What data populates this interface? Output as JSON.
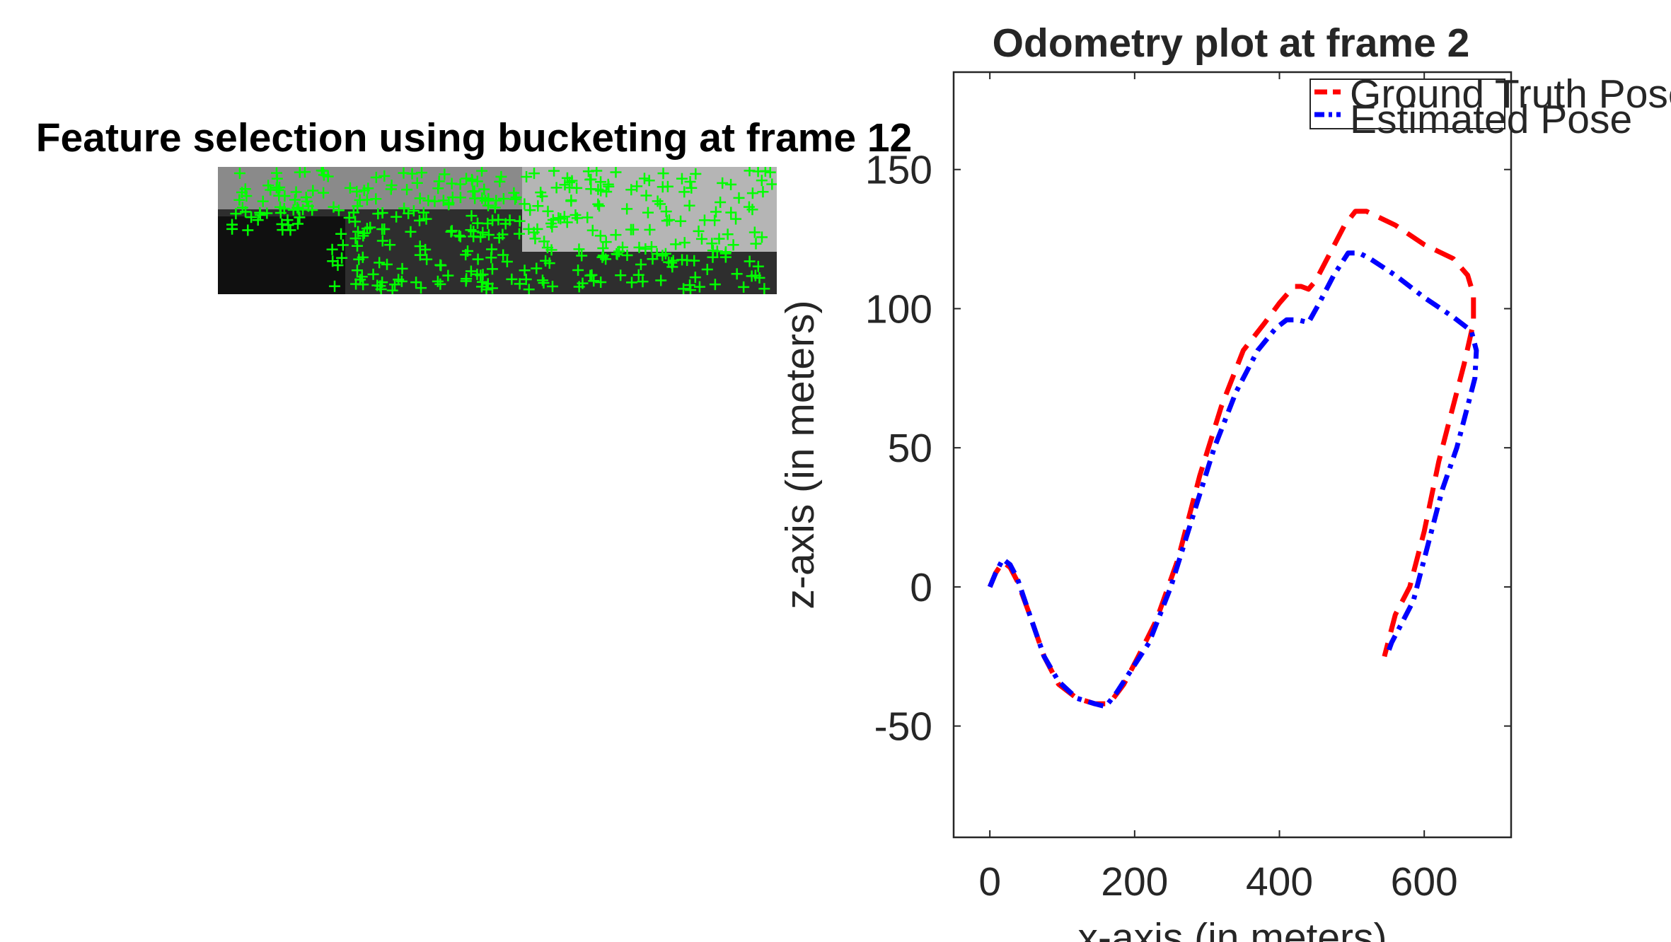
{
  "figure": {
    "left_panel": {
      "title": "Feature selection using bucketing at frame 12",
      "marker_color": "#00ff00",
      "marker_symbol": "+"
    }
  },
  "chart_data": {
    "type": "line",
    "title": "Odometry plot at frame 2",
    "xlabel": "x-axis (in meters)",
    "ylabel": "z-axis (in meters)",
    "xlim": [
      -50,
      720
    ],
    "ylim": [
      -90,
      185
    ],
    "xticks": [
      0,
      200,
      400,
      600
    ],
    "yticks": [
      -50,
      0,
      50,
      100,
      150
    ],
    "grid": false,
    "legend": {
      "placement": "top-right"
    },
    "series": [
      {
        "name": "Ground Truth Pose",
        "color": "#ff0000",
        "linestyle": "dashed",
        "x": [
          0,
          8,
          18,
          28,
          38,
          55,
          75,
          95,
          120,
          145,
          165,
          185,
          205,
          230,
          260,
          290,
          320,
          350,
          380,
          400,
          420,
          430,
          440,
          450,
          470,
          490,
          505,
          520,
          560,
          600,
          640,
          660,
          668,
          668,
          655,
          640,
          620,
          600,
          580,
          560,
          550,
          545
        ],
        "y": [
          0,
          5,
          9,
          7,
          2,
          -10,
          -25,
          -35,
          -40,
          -42,
          -42,
          -35,
          -25,
          -12,
          10,
          40,
          65,
          85,
          95,
          102,
          108,
          108,
          107,
          110,
          120,
          130,
          135,
          135,
          130,
          123,
          118,
          112,
          105,
          95,
          80,
          65,
          45,
          20,
          0,
          -10,
          -20,
          -25
        ]
      },
      {
        "name": "Estimated Pose",
        "color": "#0000ff",
        "linestyle": "dash-dot",
        "x": [
          0,
          8,
          18,
          28,
          38,
          55,
          75,
          95,
          120,
          145,
          160,
          175,
          195,
          220,
          250,
          280,
          310,
          340,
          370,
          395,
          410,
          425,
          440,
          455,
          475,
          495,
          510,
          525,
          560,
          600,
          640,
          665,
          672,
          670,
          660,
          645,
          625,
          605,
          585,
          565,
          555,
          548
        ],
        "y": [
          0,
          5,
          10,
          8,
          3,
          -10,
          -25,
          -34,
          -40,
          -42,
          -43,
          -38,
          -30,
          -20,
          0,
          25,
          50,
          70,
          85,
          93,
          96,
          96,
          95,
          102,
          112,
          120,
          120,
          118,
          112,
          104,
          97,
          92,
          85,
          75,
          65,
          50,
          35,
          15,
          -5,
          -15,
          -20,
          -25
        ]
      }
    ]
  }
}
